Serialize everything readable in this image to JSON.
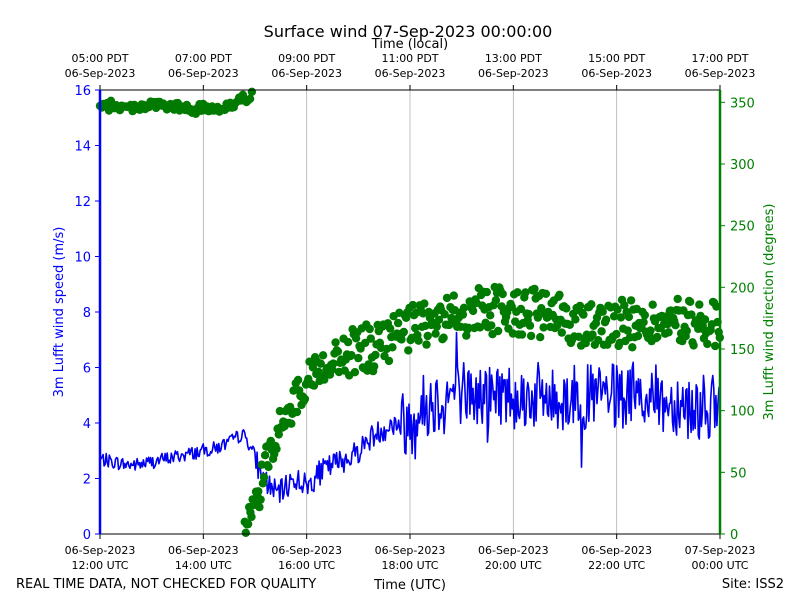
{
  "chart_data": {
    "type": "line+scatter",
    "title": "Surface wind 07-Sep-2023 00:00:00",
    "top_axis_label": "Time (local)",
    "xlabel": "Time (UTC)",
    "ylabel_left": "3m Lufft wind speed (m/s)",
    "ylabel_right": "3m Lufft wind direction (degrees)",
    "footer_left": "REAL TIME DATA, NOT CHECKED FOR QUALITY",
    "footer_right": "Site: ISS2",
    "xlim_hours_utc": [
      12,
      24
    ],
    "ylim_left": [
      0,
      16
    ],
    "ylim_right": [
      0,
      360
    ],
    "grid": "vertical",
    "colors": {
      "speed": "#0000ee",
      "direction": "#007a00",
      "axis_left": "#0000ff",
      "axis_right": "#008000"
    },
    "bottom_ticks": [
      {
        "h": 12,
        "date": "06-Sep-2023",
        "time": "12:00 UTC"
      },
      {
        "h": 14,
        "date": "06-Sep-2023",
        "time": "14:00 UTC"
      },
      {
        "h": 16,
        "date": "06-Sep-2023",
        "time": "16:00 UTC"
      },
      {
        "h": 18,
        "date": "06-Sep-2023",
        "time": "18:00 UTC"
      },
      {
        "h": 20,
        "date": "06-Sep-2023",
        "time": "20:00 UTC"
      },
      {
        "h": 22,
        "date": "06-Sep-2023",
        "time": "22:00 UTC"
      },
      {
        "h": 24,
        "date": "07-Sep-2023",
        "time": "00:00 UTC"
      }
    ],
    "top_ticks": [
      {
        "h": 12,
        "time": "05:00 PDT",
        "date": "06-Sep-2023"
      },
      {
        "h": 14,
        "time": "07:00 PDT",
        "date": "06-Sep-2023"
      },
      {
        "h": 16,
        "time": "09:00 PDT",
        "date": "06-Sep-2023"
      },
      {
        "h": 18,
        "time": "11:00 PDT",
        "date": "06-Sep-2023"
      },
      {
        "h": 20,
        "time": "13:00 PDT",
        "date": "06-Sep-2023"
      },
      {
        "h": 22,
        "time": "15:00 PDT",
        "date": "06-Sep-2023"
      },
      {
        "h": 24,
        "time": "17:00 PDT",
        "date": "06-Sep-2023"
      }
    ],
    "left_ticks": [
      0,
      2,
      4,
      6,
      8,
      10,
      12,
      14,
      16
    ],
    "right_ticks": [
      0,
      50,
      100,
      150,
      200,
      250,
      300,
      350
    ],
    "speed_series": {
      "name": "Wind speed (m/s)",
      "x": [
        12.0,
        12.25,
        12.5,
        12.75,
        13.0,
        13.25,
        13.5,
        13.75,
        14.0,
        14.25,
        14.5,
        14.75,
        14.85,
        15.0,
        15.1,
        15.25,
        15.4,
        15.5,
        15.6,
        15.75,
        15.9,
        16.0,
        16.25,
        16.5,
        16.75,
        17.0,
        17.25,
        17.5,
        17.75,
        18.0,
        18.25,
        18.5,
        18.75,
        19.0,
        19.25,
        19.5,
        19.75,
        20.0,
        20.25,
        20.5,
        20.75,
        21.0,
        21.25,
        21.5,
        21.75,
        22.0,
        22.25,
        22.5,
        22.75,
        23.0,
        23.25,
        23.5,
        23.75,
        24.0
      ],
      "y": [
        2.7,
        2.6,
        2.5,
        2.5,
        2.6,
        2.7,
        2.8,
        2.9,
        3.0,
        3.1,
        3.3,
        3.6,
        3.4,
        2.8,
        2.2,
        1.8,
        1.5,
        1.5,
        1.7,
        2.0,
        1.9,
        1.7,
        2.2,
        2.5,
        2.7,
        3.0,
        3.5,
        3.8,
        4.0,
        4.0,
        4.6,
        4.8,
        5.0,
        5.2,
        4.9,
        5.0,
        5.1,
        5.0,
        4.9,
        5.0,
        4.8,
        4.9,
        5.0,
        4.9,
        5.0,
        4.9,
        4.8,
        5.0,
        4.9,
        4.7,
        4.8,
        4.5,
        4.6,
        4.4
      ]
    },
    "direction_series": {
      "name": "Wind direction (degrees)",
      "segments": [
        {
          "x": [
            12.0,
            12.25,
            12.5,
            12.75,
            13.0,
            13.25,
            13.5,
            13.75,
            14.0,
            14.25,
            14.5,
            14.75,
            14.95
          ],
          "y": [
            345,
            348,
            345,
            347,
            348,
            347,
            346,
            344,
            345,
            346,
            347,
            352,
            357
          ]
        },
        {
          "x": [
            14.8,
            15.0,
            15.2,
            15.4,
            15.6,
            15.8,
            16.0,
            16.25,
            16.5,
            16.75,
            17.0,
            17.25,
            17.5,
            17.75,
            18.0,
            18.25,
            18.5,
            18.75,
            19.0,
            19.25,
            19.5,
            19.75,
            20.0,
            20.25,
            20.5,
            20.75,
            21.0,
            21.25,
            21.5,
            21.75,
            22.0,
            22.25,
            22.5,
            22.75,
            23.0,
            23.25,
            23.5,
            23.75,
            24.0
          ],
          "y": [
            2,
            20,
            55,
            80,
            95,
            110,
            125,
            135,
            140,
            145,
            150,
            150,
            155,
            160,
            165,
            170,
            172,
            175,
            178,
            180,
            182,
            180,
            182,
            180,
            178,
            176,
            175,
            173,
            172,
            170,
            172,
            170,
            168,
            170,
            168,
            172,
            170,
            168,
            172
          ]
        }
      ]
    }
  }
}
